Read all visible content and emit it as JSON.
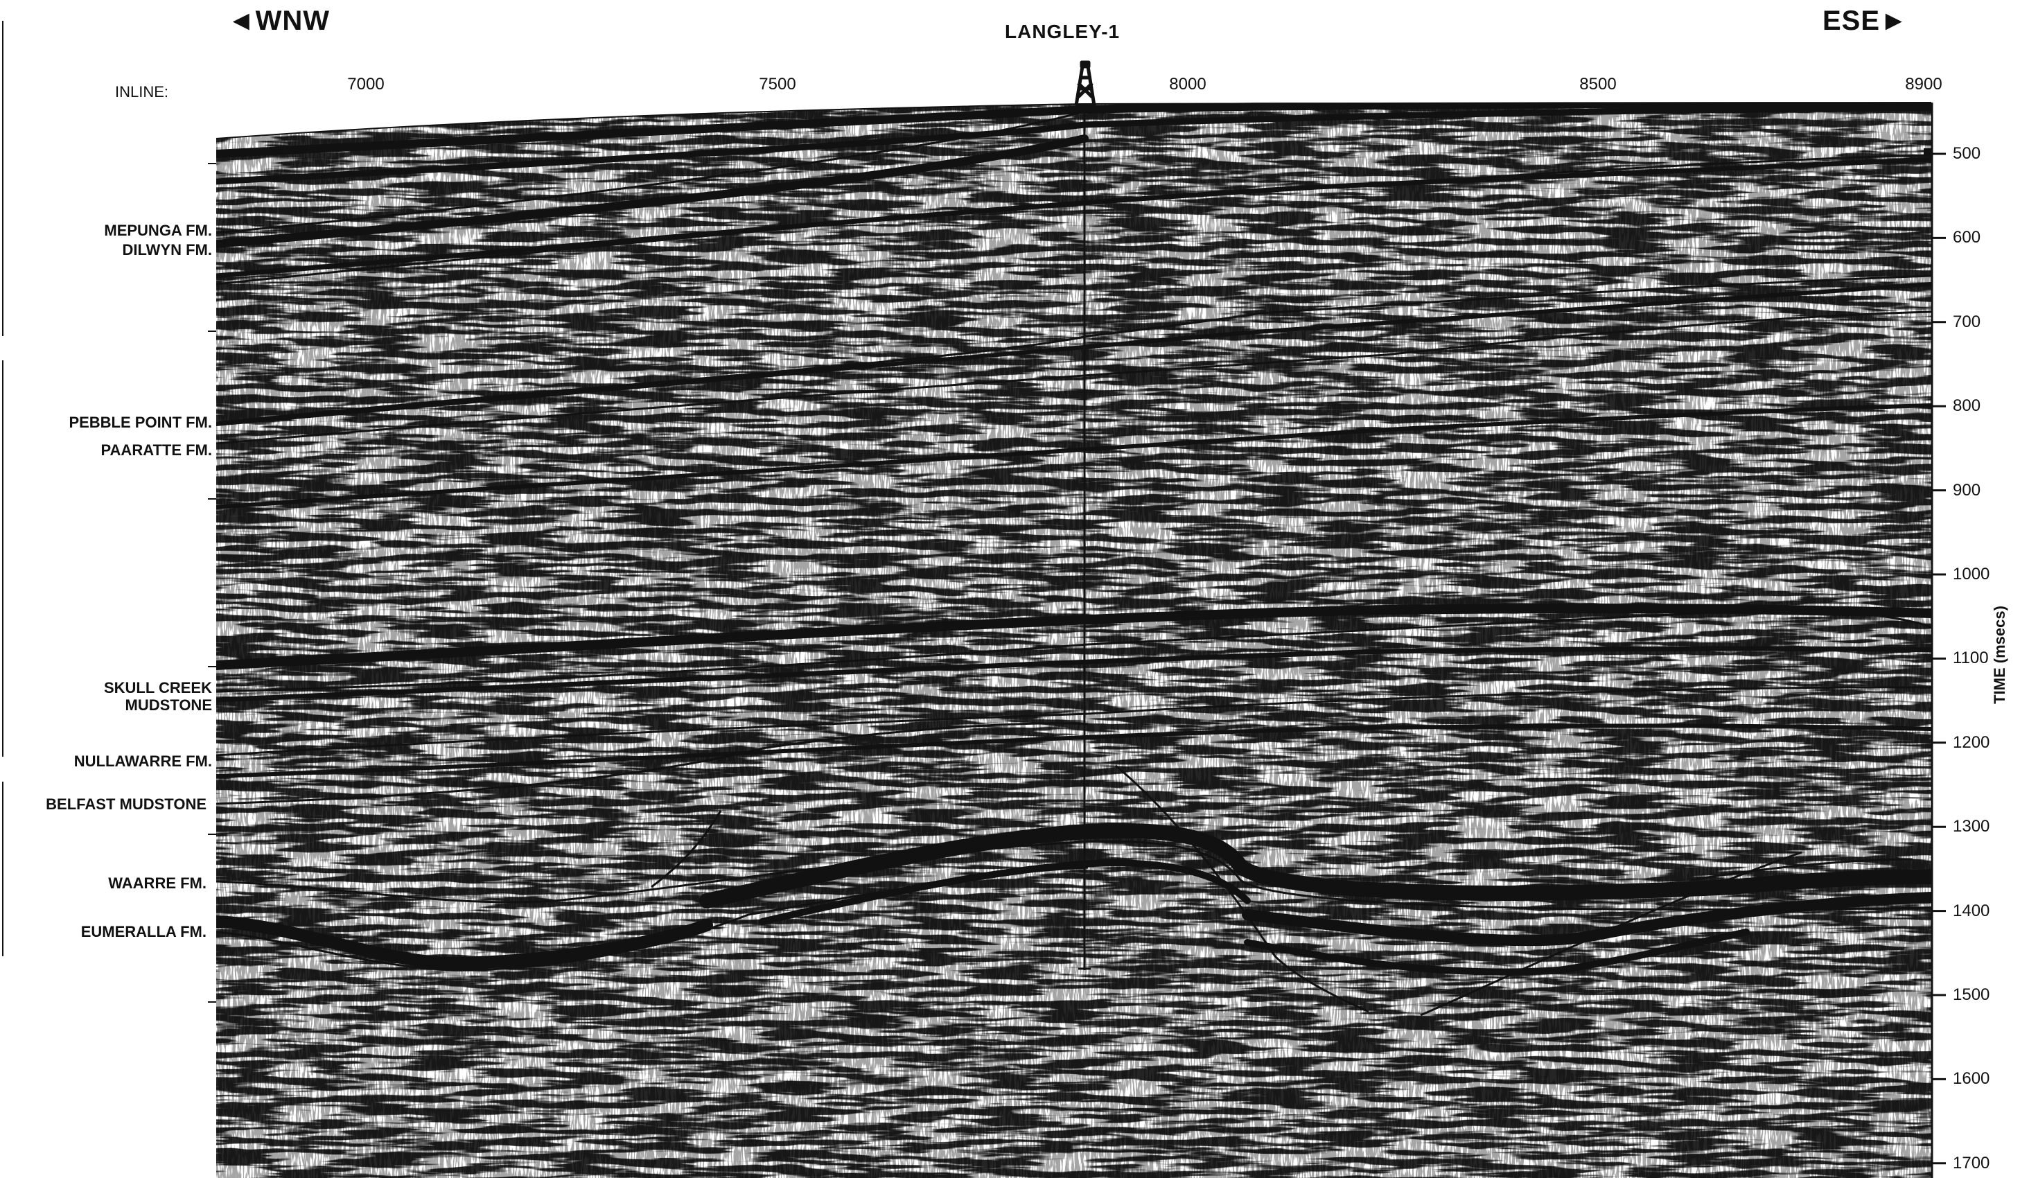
{
  "header": {
    "direction_left": "◄WNW",
    "direction_right": "ESE►",
    "well_name": "LANGLEY-1"
  },
  "inline_axis": {
    "label": "INLINE:",
    "ticks": [
      "7000",
      "7500",
      "8000",
      "8500",
      "8900"
    ]
  },
  "time_axis": {
    "label": "TIME (msecs)",
    "ticks": [
      "500",
      "600",
      "700",
      "800",
      "900",
      "1000",
      "1100",
      "1200",
      "1300",
      "1400",
      "1500",
      "1600",
      "1700"
    ]
  },
  "horizons": [
    "MEPUNGA FM.",
    "DILWYN FM.",
    "PEBBLE POINT FM.",
    "PAARATTE FM.",
    "SKULL CREEK MUDSTONE",
    "NULLAWARRE FM.",
    "BELFAST MUDSTONE",
    "WAARRE FM.",
    "EUMERALLA FM."
  ],
  "colors": {
    "ink": "#111111",
    "paper": "#ffffff"
  },
  "icons": {
    "well": "drilling-derrick-icon"
  }
}
